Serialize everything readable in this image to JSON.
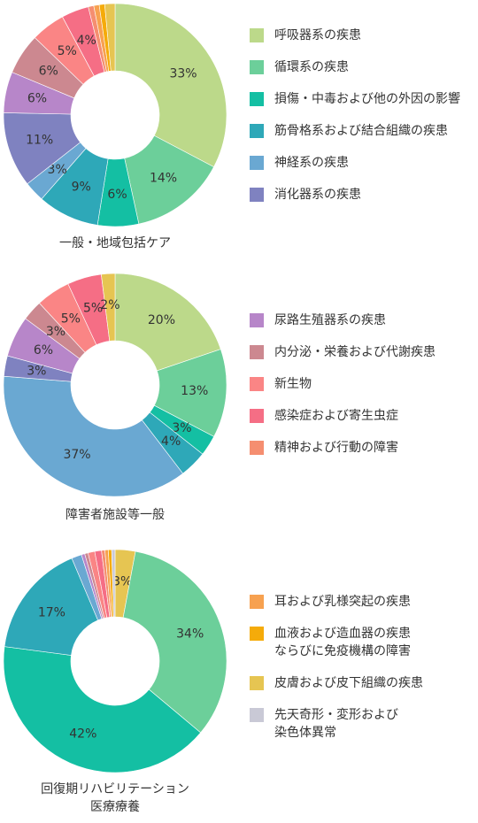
{
  "categories": {
    "resp": {
      "name": "呼吸器系の疾患",
      "color": "#bcd98a"
    },
    "circ": {
      "name": "循環系の疾患",
      "color": "#6ccf9a"
    },
    "injury": {
      "name": "損傷・中毒および他の外因の影響",
      "color": "#14bfa3"
    },
    "musc": {
      "name": "筋骨格系および結合組織の疾患",
      "color": "#2ea8b8"
    },
    "nerve": {
      "name": "神経系の疾患",
      "color": "#6aa8d2"
    },
    "digest": {
      "name": "消化器系の疾患",
      "color": "#7f82c0"
    },
    "urin": {
      "name": "尿路生殖器系の疾患",
      "color": "#b786c9"
    },
    "endo": {
      "name": "内分泌・栄養および代謝疾患",
      "color": "#cc8890"
    },
    "neo": {
      "name": "新生物",
      "color": "#fa8585"
    },
    "infect": {
      "name": "感染症および寄生虫症",
      "color": "#f56e85"
    },
    "mental": {
      "name": "精神および行動の障害",
      "color": "#f58e70"
    },
    "ear": {
      "name": "耳および乳様突起の疾患",
      "color": "#f7a150"
    },
    "blood": {
      "name": "血液および造血器の疾患\nならびに免疫機構の障害",
      "color": "#f5ab0a"
    },
    "skin": {
      "name": "皮膚および皮下組織の疾患",
      "color": "#e6c552"
    },
    "congen": {
      "name": "先天奇形・変形および\n染色体異常",
      "color": "#c9c9d6"
    }
  },
  "legends": [
    [
      "resp",
      "circ",
      "injury",
      "musc",
      "nerve",
      "digest"
    ],
    [
      "urin",
      "endo",
      "neo",
      "infect",
      "mental"
    ],
    [
      "ear",
      "blood",
      "skin",
      "congen"
    ]
  ],
  "chart_data": [
    {
      "type": "pie",
      "title": "一般・地域包括ケア",
      "slices": [
        {
          "key": "resp",
          "value": 33,
          "label": "33%"
        },
        {
          "key": "circ",
          "value": 14,
          "label": "14%"
        },
        {
          "key": "injury",
          "value": 6,
          "label": "6%"
        },
        {
          "key": "musc",
          "value": 9,
          "label": "9%"
        },
        {
          "key": "nerve",
          "value": 3,
          "label": "3%"
        },
        {
          "key": "digest",
          "value": 11,
          "label": "11%"
        },
        {
          "key": "urin",
          "value": 6,
          "label": "6%"
        },
        {
          "key": "endo",
          "value": 6,
          "label": "6%"
        },
        {
          "key": "neo",
          "value": 5,
          "label": "5%"
        },
        {
          "key": "infect",
          "value": 4,
          "label": "4%"
        },
        {
          "key": "mental",
          "value": 0.8,
          "label": ""
        },
        {
          "key": "ear",
          "value": 0.8,
          "label": ""
        },
        {
          "key": "blood",
          "value": 0.8,
          "label": ""
        },
        {
          "key": "skin",
          "value": 1.5,
          "label": ""
        }
      ]
    },
    {
      "type": "pie",
      "title": "障害者施設等一般",
      "slices": [
        {
          "key": "resp",
          "value": 20,
          "label": "20%"
        },
        {
          "key": "circ",
          "value": 13,
          "label": "13%"
        },
        {
          "key": "injury",
          "value": 3,
          "label": "3%"
        },
        {
          "key": "musc",
          "value": 4,
          "label": "4%"
        },
        {
          "key": "nerve",
          "value": 37,
          "label": "37%"
        },
        {
          "key": "digest",
          "value": 3,
          "label": "3%"
        },
        {
          "key": "urin",
          "value": 6,
          "label": "6%"
        },
        {
          "key": "endo",
          "value": 3,
          "label": "3%"
        },
        {
          "key": "neo",
          "value": 5,
          "label": "5%"
        },
        {
          "key": "infect",
          "value": 5,
          "label": "5%"
        },
        {
          "key": "skin",
          "value": 2,
          "label": "2%"
        }
      ]
    },
    {
      "type": "pie",
      "title": "回復期リハビリテーション\n医療療養",
      "slices": [
        {
          "key": "skin",
          "value": 3,
          "label": "3%"
        },
        {
          "key": "circ",
          "value": 34,
          "label": "34%"
        },
        {
          "key": "injury",
          "value": 42,
          "label": "42%"
        },
        {
          "key": "musc",
          "value": 17,
          "label": "17%"
        },
        {
          "key": "nerve",
          "value": 1.5,
          "label": ""
        },
        {
          "key": "urin",
          "value": 0.5,
          "label": ""
        },
        {
          "key": "endo",
          "value": 0.5,
          "label": ""
        },
        {
          "key": "neo",
          "value": 1,
          "label": ""
        },
        {
          "key": "infect",
          "value": 1,
          "label": ""
        },
        {
          "key": "mental",
          "value": 0.5,
          "label": ""
        },
        {
          "key": "ear",
          "value": 0.5,
          "label": ""
        },
        {
          "key": "blood",
          "value": 0.5,
          "label": ""
        },
        {
          "key": "congen",
          "value": 0.5,
          "label": ""
        }
      ]
    }
  ]
}
